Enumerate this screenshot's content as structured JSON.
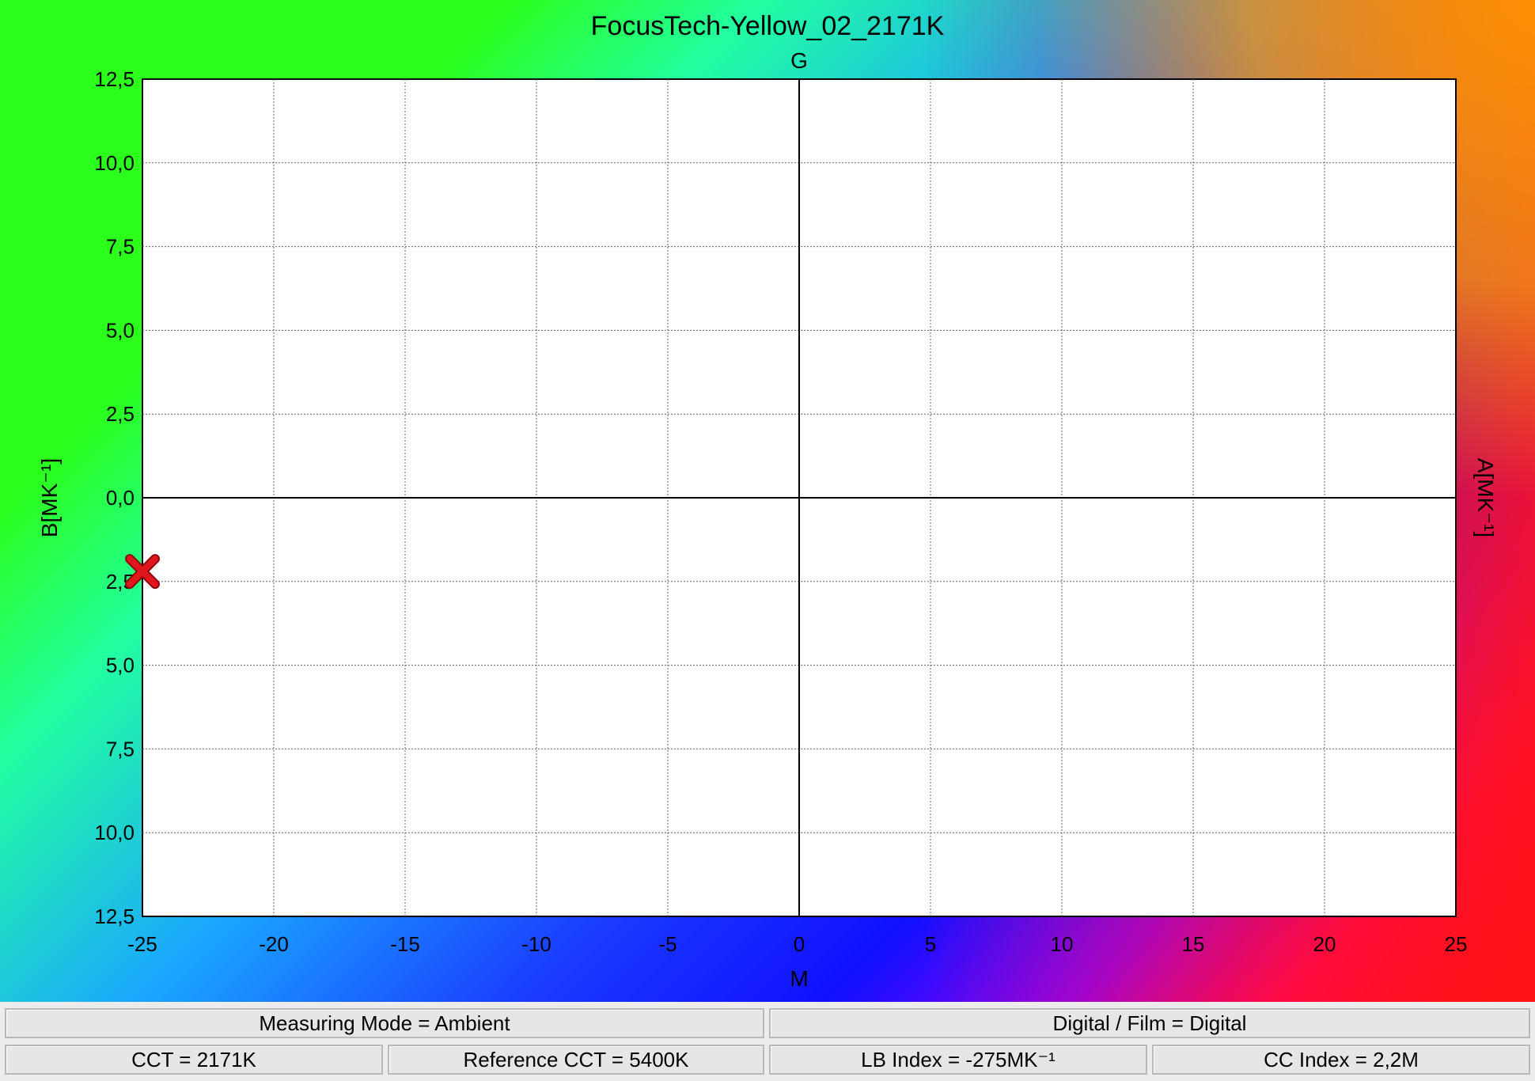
{
  "chart_data": {
    "type": "scatter",
    "title": "FocusTech-Yellow_02_2171K",
    "top_label": "G",
    "xlabel": "M",
    "ylabel_left": "B[MK⁻¹]",
    "ylabel_right": "A[MK⁻¹]",
    "xlim": [
      -25,
      25
    ],
    "ylim": [
      -12.5,
      12.5
    ],
    "x_ticks": [
      -25,
      -20,
      -15,
      -10,
      -5,
      0,
      5,
      10,
      15,
      20,
      25
    ],
    "x_tick_labels": [
      "-25",
      "-20",
      "-15",
      "-10",
      "-5",
      "0",
      "5",
      "10",
      "15",
      "20",
      "25"
    ],
    "y_ticks": [
      12.5,
      10,
      7.5,
      5,
      2.5,
      0,
      -2.5,
      -5,
      -7.5,
      -10,
      -12.5
    ],
    "y_tick_labels": [
      "12,5",
      "10,0",
      "7,5",
      "5,0",
      "2,5",
      "0,0",
      "2,5",
      "5,0",
      "7,5",
      "10,0",
      "12,5"
    ],
    "grid": true,
    "points": [
      {
        "x": -25,
        "y": -2.2,
        "marker": "x",
        "color": "#e0161c"
      }
    ]
  },
  "info": {
    "measuring_mode": "Measuring Mode = Ambient",
    "digital_film": "Digital / Film = Digital",
    "cct": "CCT = 2171K",
    "reference_cct": "Reference CCT = 5400K",
    "lb_index": "LB Index = -275MK⁻¹",
    "cc_index": "CC Index = 2,2M"
  }
}
